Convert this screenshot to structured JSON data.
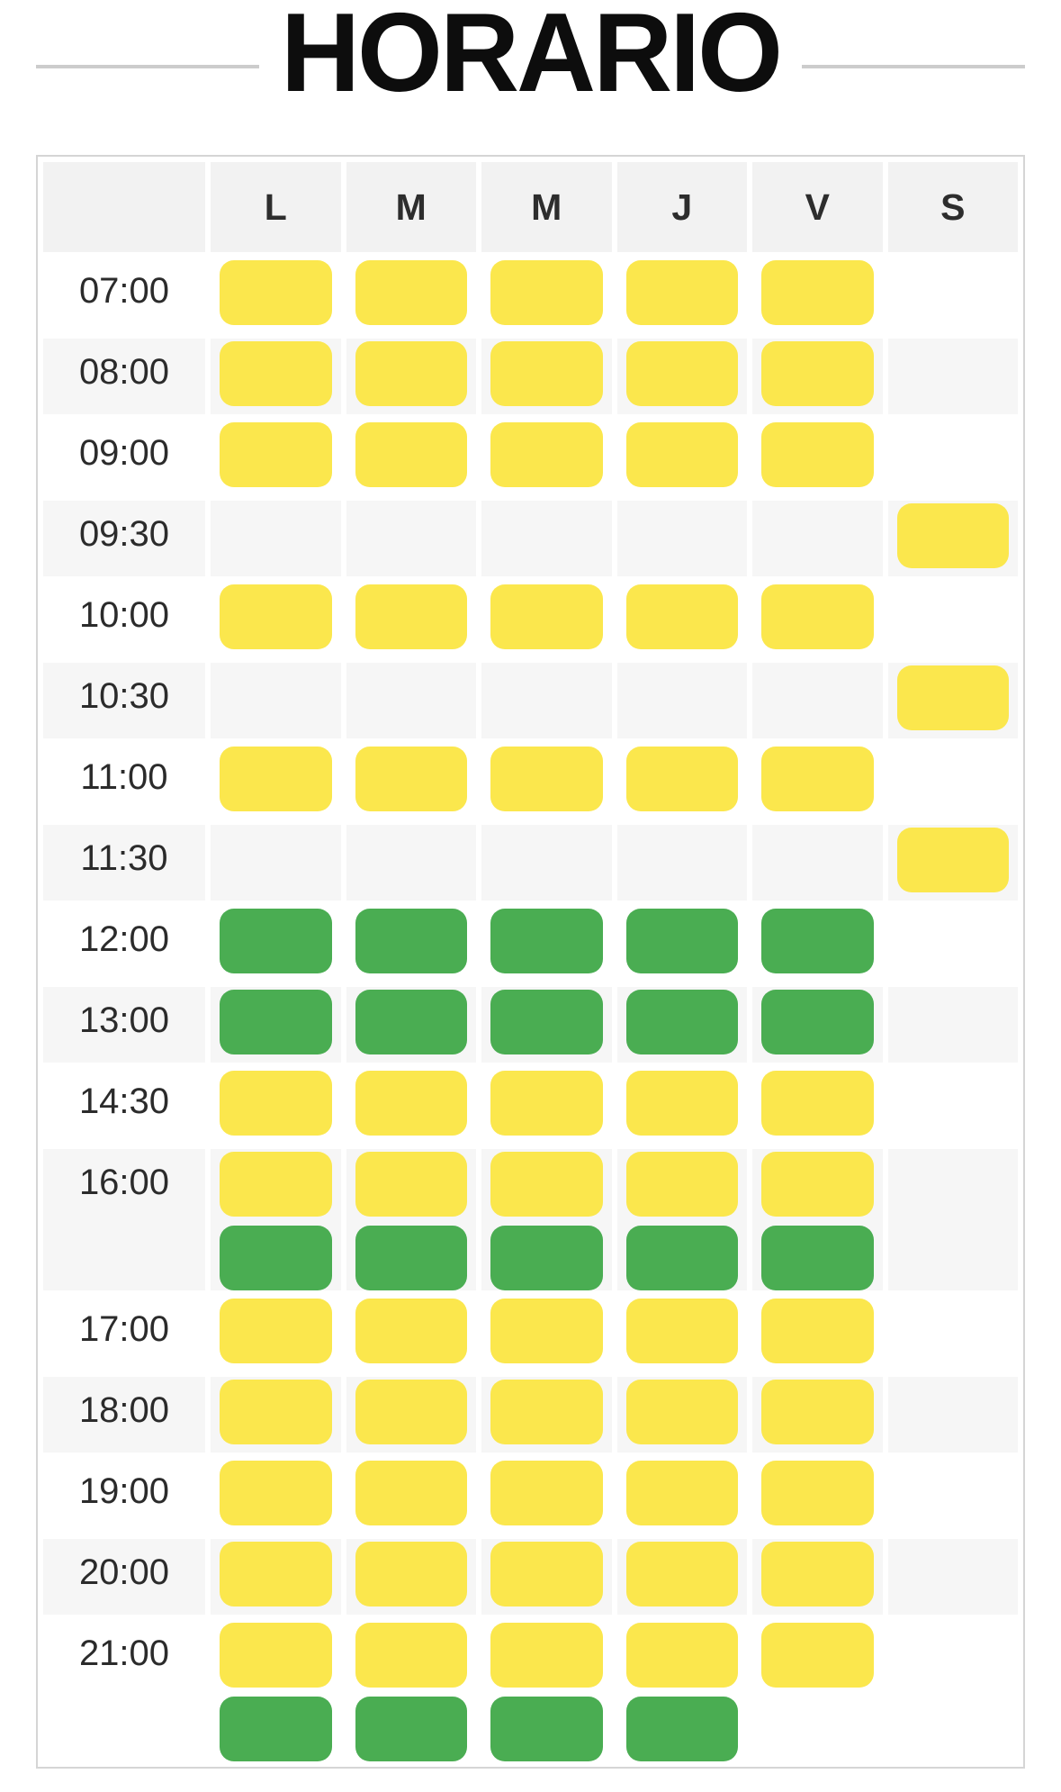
{
  "title": "HORARIO",
  "colors": {
    "yellow": "#fbe74d",
    "green": "#4aad52"
  },
  "schedule": {
    "day_headers": [
      "",
      "L",
      "M",
      "M",
      "J",
      "V",
      "S"
    ],
    "rows": [
      {
        "time": "07:00",
        "days": [
          [
            "yellow"
          ],
          [
            "yellow"
          ],
          [
            "yellow"
          ],
          [
            "yellow"
          ],
          [
            "yellow"
          ],
          []
        ]
      },
      {
        "time": "08:00",
        "days": [
          [
            "yellow"
          ],
          [
            "yellow"
          ],
          [
            "yellow"
          ],
          [
            "yellow"
          ],
          [
            "yellow"
          ],
          []
        ]
      },
      {
        "time": "09:00",
        "days": [
          [
            "yellow"
          ],
          [
            "yellow"
          ],
          [
            "yellow"
          ],
          [
            "yellow"
          ],
          [
            "yellow"
          ],
          []
        ]
      },
      {
        "time": "09:30",
        "days": [
          [],
          [],
          [],
          [],
          [],
          [
            "yellow"
          ]
        ]
      },
      {
        "time": "10:00",
        "days": [
          [
            "yellow"
          ],
          [
            "yellow"
          ],
          [
            "yellow"
          ],
          [
            "yellow"
          ],
          [
            "yellow"
          ],
          []
        ]
      },
      {
        "time": "10:30",
        "days": [
          [],
          [],
          [],
          [],
          [],
          [
            "yellow"
          ]
        ]
      },
      {
        "time": "11:00",
        "days": [
          [
            "yellow"
          ],
          [
            "yellow"
          ],
          [
            "yellow"
          ],
          [
            "yellow"
          ],
          [
            "yellow"
          ],
          []
        ]
      },
      {
        "time": "11:30",
        "days": [
          [],
          [],
          [],
          [],
          [],
          [
            "yellow"
          ]
        ]
      },
      {
        "time": "12:00",
        "days": [
          [
            "green"
          ],
          [
            "green"
          ],
          [
            "green"
          ],
          [
            "green"
          ],
          [
            "green"
          ],
          []
        ]
      },
      {
        "time": "13:00",
        "days": [
          [
            "green"
          ],
          [
            "green"
          ],
          [
            "green"
          ],
          [
            "green"
          ],
          [
            "green"
          ],
          []
        ]
      },
      {
        "time": "14:30",
        "days": [
          [
            "yellow"
          ],
          [
            "yellow"
          ],
          [
            "yellow"
          ],
          [
            "yellow"
          ],
          [
            "yellow"
          ],
          []
        ]
      },
      {
        "time": "16:00",
        "days": [
          [
            "yellow",
            "green"
          ],
          [
            "yellow",
            "green"
          ],
          [
            "yellow",
            "green"
          ],
          [
            "yellow",
            "green"
          ],
          [
            "yellow",
            "green"
          ],
          []
        ]
      },
      {
        "time": "17:00",
        "days": [
          [
            "yellow"
          ],
          [
            "yellow"
          ],
          [
            "yellow"
          ],
          [
            "yellow"
          ],
          [
            "yellow"
          ],
          []
        ]
      },
      {
        "time": "18:00",
        "days": [
          [
            "yellow"
          ],
          [
            "yellow"
          ],
          [
            "yellow"
          ],
          [
            "yellow"
          ],
          [
            "yellow"
          ],
          []
        ]
      },
      {
        "time": "19:00",
        "days": [
          [
            "yellow"
          ],
          [
            "yellow"
          ],
          [
            "yellow"
          ],
          [
            "yellow"
          ],
          [
            "yellow"
          ],
          []
        ]
      },
      {
        "time": "20:00",
        "days": [
          [
            "yellow"
          ],
          [
            "yellow"
          ],
          [
            "yellow"
          ],
          [
            "yellow"
          ],
          [
            "yellow"
          ],
          []
        ]
      },
      {
        "time": "21:00",
        "days": [
          [
            "yellow",
            "green"
          ],
          [
            "yellow",
            "green"
          ],
          [
            "yellow",
            "green"
          ],
          [
            "yellow",
            "green"
          ],
          [
            "yellow"
          ],
          []
        ]
      }
    ]
  }
}
